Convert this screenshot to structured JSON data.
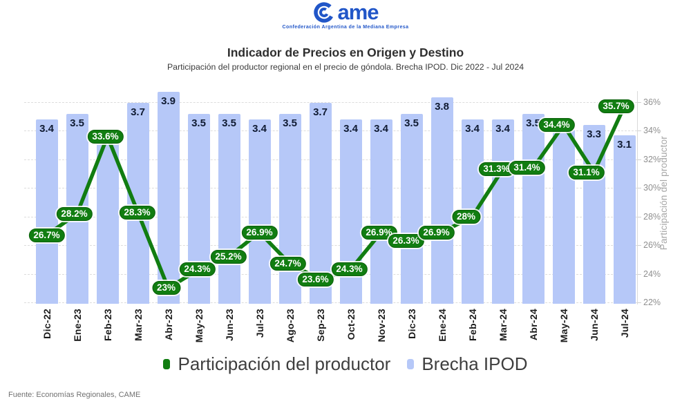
{
  "header": {
    "logo_text": "Came",
    "logo_tagline": "Confederación Argentina de la Mediana Empresa",
    "title": "Indicador de Precios en Origen y Destino",
    "subtitle": "Participación del productor regional en el precio de góndola. Brecha IPOD. Dic 2022 - Jul 2024"
  },
  "chart_data": {
    "type": "combo",
    "categories": [
      "Dic-22",
      "Ene-23",
      "Feb-23",
      "Mar-23",
      "Abr-23",
      "May-23",
      "Jun-23",
      "Jul-23",
      "Ago-23",
      "Sep-23",
      "Oct-23",
      "Nov-23",
      "Dic-23",
      "Ene-24",
      "Feb-24",
      "Mar-24",
      "Abr-24",
      "May-24",
      "Jun-24",
      "Jul-24"
    ],
    "series": [
      {
        "name": "Brecha IPOD",
        "type": "bar",
        "color": "#b6c8f8",
        "values": [
          3.4,
          3.5,
          3.0,
          3.7,
          3.9,
          3.5,
          3.5,
          3.4,
          3.5,
          3.7,
          3.4,
          3.4,
          3.5,
          3.8,
          3.4,
          3.4,
          3.5,
          3.2,
          3.3,
          3.1
        ],
        "value_labels": [
          "3.4",
          "3.5",
          null,
          "3.7",
          "3.9",
          "3.5",
          "3.5",
          "3.4",
          "3.5",
          "3.7",
          "3.4",
          "3.4",
          "3.5",
          "3.8",
          "3.4",
          "3.4",
          "3.5",
          null,
          "3.3",
          "3.1"
        ]
      },
      {
        "name": "Participación del productor",
        "type": "line",
        "color": "#117d11",
        "values": [
          26.7,
          28.2,
          33.6,
          28.3,
          23,
          24.3,
          25.2,
          26.9,
          24.7,
          23.6,
          24.3,
          26.9,
          26.3,
          26.9,
          28,
          31.3,
          31.4,
          34.4,
          31.1,
          35.7
        ],
        "value_labels": [
          "26.7%",
          "28.2%",
          "33.6%",
          "28.3%",
          "23%",
          "24.3%",
          "25.2%",
          "26.9%",
          "24.7%",
          "23.6%",
          "24.3%",
          "26.9%",
          "26.3%",
          "26.9%",
          "28%",
          "31.3%",
          "31.4%",
          "34.4%",
          "31.1%",
          "35.7%"
        ]
      }
    ],
    "right_axis": {
      "title": "Participación del productor",
      "min": 22,
      "max": 36,
      "tick_step": 2,
      "tick_labels": [
        "22%",
        "24%",
        "26%",
        "28%",
        "30%",
        "32%",
        "34%",
        "36%"
      ]
    },
    "grid": "horizontal-dashed",
    "legend_position": "bottom"
  },
  "legend": {
    "items": [
      {
        "label": "Participación del productor",
        "color": "#117d11"
      },
      {
        "label": "Brecha IPOD",
        "color": "#b6c8f8"
      }
    ]
  },
  "footer": {
    "source": "Fuente: Economías Regionales, CAME"
  },
  "colors": {
    "logo_blue": "#2156c8",
    "title": "#2f2f2f",
    "subtitle": "#3a3a3a",
    "bar": "#b6c8f8",
    "bar_label": "#101b33",
    "line_green": "#117d11",
    "grid": "#dcdcdc",
    "axis_text": "#8f8f8f",
    "axis_title": "#a6a6a6",
    "x_label": "#1c1c1c",
    "legend_text": "#3e3e3e",
    "footer_text": "#717171"
  }
}
